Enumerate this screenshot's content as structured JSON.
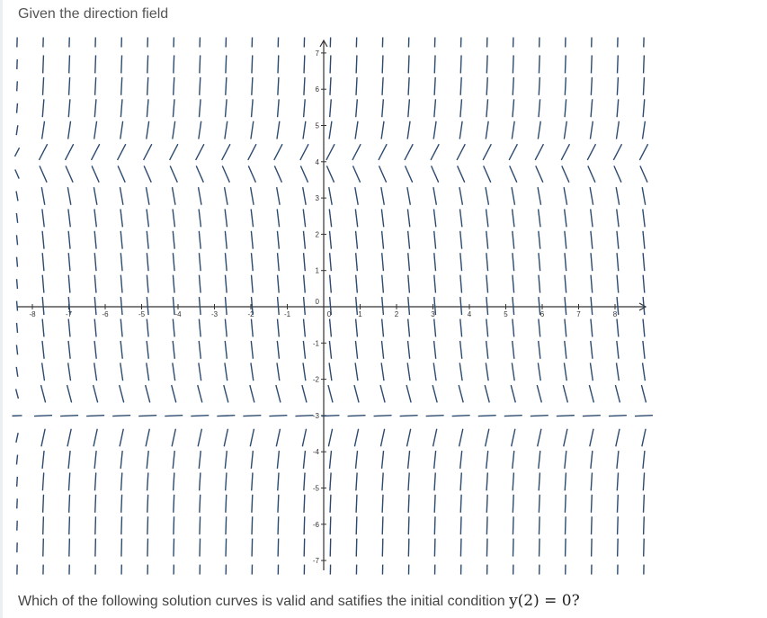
{
  "header": {
    "title": "Given the direction field"
  },
  "question": {
    "text": "Which of the following solution curves is valid and satifies the initial condition ",
    "math": "y(2) = 0?"
  },
  "chart_data": {
    "type": "direction-field",
    "x_ticks": [
      "-8",
      "-7",
      "-6",
      "-5",
      "-4",
      "-3",
      "-2",
      "-1",
      "0",
      "1",
      "2",
      "3",
      "4",
      "5",
      "6",
      "7",
      "8"
    ],
    "y_ticks": [
      "7",
      "6",
      "5",
      "4",
      "3",
      "2",
      "1",
      "0",
      "-1",
      "-2",
      "-3",
      "-4",
      "-5",
      "-6",
      "-7"
    ],
    "xlim": [
      -8.4,
      8.9
    ],
    "ylim": [
      -7.3,
      7.4
    ],
    "grid_columns": 25,
    "grid_rows": 25,
    "segment_color": "#2c4a6e",
    "axis_color": "#333333"
  }
}
